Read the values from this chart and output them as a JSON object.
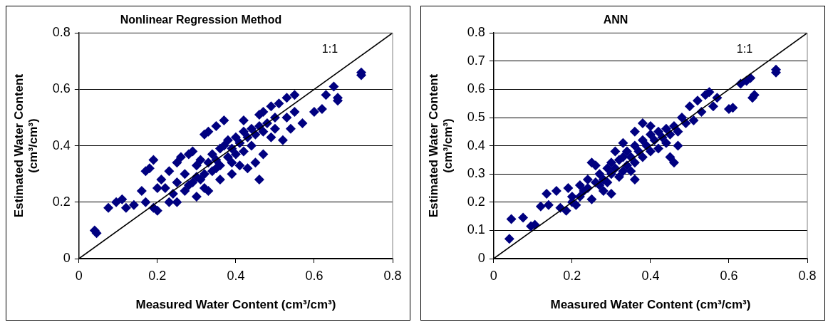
{
  "chart_data": [
    {
      "type": "scatter",
      "title": "Nonlinear Regression Method",
      "xlabel": "Measured Water Content (cm³/cm³)",
      "ylabel": "Estimated Water Content\n(cm³/cm³)",
      "xlim": [
        0,
        0.8
      ],
      "xticks": [
        0,
        0.2,
        0.4,
        0.6,
        0.8
      ],
      "ylim": [
        0,
        0.8
      ],
      "yticks": [
        0,
        0.2,
        0.4,
        0.6,
        0.8
      ],
      "grid": "y",
      "legend": false,
      "annotations": [
        "1:1"
      ],
      "series": [
        {
          "color": "#000080",
          "marker": "diamond",
          "x": [
            0.04,
            0.045,
            0.075,
            0.095,
            0.11,
            0.12,
            0.14,
            0.17,
            0.18,
            0.19,
            0.16,
            0.17,
            0.19,
            0.2,
            0.2,
            0.23,
            0.25,
            0.21,
            0.23,
            0.25,
            0.26,
            0.28,
            0.29,
            0.3,
            0.32,
            0.33,
            0.32,
            0.33,
            0.35,
            0.37,
            0.36,
            0.39,
            0.42,
            0.43,
            0.45,
            0.46,
            0.47,
            0.46,
            0.47,
            0.49,
            0.51,
            0.49,
            0.5,
            0.52,
            0.53,
            0.54,
            0.55,
            0.57,
            0.53,
            0.55,
            0.6,
            0.62,
            0.63,
            0.65,
            0.66,
            0.66,
            0.72,
            0.72,
            0.25,
            0.27,
            0.28,
            0.3,
            0.3,
            0.31,
            0.32,
            0.33,
            0.34,
            0.34,
            0.35,
            0.36,
            0.36,
            0.37,
            0.38,
            0.38,
            0.39,
            0.4,
            0.4,
            0.41,
            0.42,
            0.42,
            0.43,
            0.44,
            0.44,
            0.45,
            0.46,
            0.47,
            0.48,
            0.5,
            0.24,
            0.22,
            0.27,
            0.29,
            0.31,
            0.35,
            0.39,
            0.41
          ],
          "values": [
            0.1,
            0.09,
            0.18,
            0.2,
            0.21,
            0.18,
            0.19,
            0.31,
            0.32,
            0.35,
            0.24,
            0.2,
            0.18,
            0.17,
            0.25,
            0.2,
            0.2,
            0.28,
            0.31,
            0.34,
            0.36,
            0.37,
            0.38,
            0.22,
            0.25,
            0.24,
            0.44,
            0.45,
            0.47,
            0.49,
            0.28,
            0.3,
            0.49,
            0.32,
            0.34,
            0.28,
            0.37,
            0.51,
            0.52,
            0.54,
            0.55,
            0.43,
            0.46,
            0.42,
            0.5,
            0.46,
            0.52,
            0.48,
            0.57,
            0.58,
            0.52,
            0.53,
            0.58,
            0.61,
            0.56,
            0.57,
            0.66,
            0.65,
            0.27,
            0.3,
            0.26,
            0.33,
            0.29,
            0.35,
            0.3,
            0.34,
            0.37,
            0.31,
            0.35,
            0.39,
            0.33,
            0.4,
            0.36,
            0.42,
            0.39,
            0.43,
            0.37,
            0.41,
            0.45,
            0.38,
            0.43,
            0.46,
            0.4,
            0.44,
            0.47,
            0.45,
            0.48,
            0.5,
            0.23,
            0.25,
            0.24,
            0.27,
            0.28,
            0.32,
            0.34,
            0.33
          ]
        },
        {
          "type": "line",
          "color": "#000000",
          "marker": "none",
          "x": [
            0,
            0.8
          ],
          "values": [
            0,
            0.8
          ]
        }
      ]
    },
    {
      "type": "scatter",
      "title": "ANN",
      "xlabel": "Measured Water Content (cm³/cm³)",
      "ylabel": "Estimated Water Content\n(cm³/cm³)",
      "xlim": [
        0,
        0.8
      ],
      "xticks": [
        0,
        0.2,
        0.4,
        0.6,
        0.8
      ],
      "ylim": [
        0,
        0.8
      ],
      "yticks": [
        0,
        0.1,
        0.2,
        0.3,
        0.4,
        0.5,
        0.6,
        0.7,
        0.8
      ],
      "grid": "y",
      "legend": false,
      "annotations": [
        "1:1"
      ],
      "series": [
        {
          "color": "#000080",
          "marker": "diamond",
          "x": [
            0.04,
            0.045,
            0.075,
            0.095,
            0.105,
            0.12,
            0.135,
            0.14,
            0.16,
            0.17,
            0.185,
            0.19,
            0.2,
            0.22,
            0.24,
            0.25,
            0.26,
            0.25,
            0.28,
            0.3,
            0.31,
            0.33,
            0.36,
            0.36,
            0.38,
            0.4,
            0.46,
            0.45,
            0.47,
            0.48,
            0.5,
            0.52,
            0.51,
            0.53,
            0.54,
            0.55,
            0.56,
            0.57,
            0.6,
            0.61,
            0.63,
            0.645,
            0.655,
            0.66,
            0.665,
            0.72,
            0.72,
            0.22,
            0.23,
            0.24,
            0.26,
            0.27,
            0.28,
            0.29,
            0.3,
            0.3,
            0.31,
            0.32,
            0.32,
            0.33,
            0.34,
            0.34,
            0.35,
            0.36,
            0.36,
            0.37,
            0.38,
            0.38,
            0.39,
            0.4,
            0.4,
            0.41,
            0.42,
            0.42,
            0.43,
            0.44,
            0.44,
            0.45,
            0.46,
            0.47,
            0.49,
            0.2,
            0.21,
            0.27,
            0.29,
            0.33,
            0.35
          ],
          "values": [
            0.07,
            0.14,
            0.145,
            0.115,
            0.12,
            0.185,
            0.23,
            0.19,
            0.24,
            0.18,
            0.17,
            0.25,
            0.2,
            0.22,
            0.28,
            0.21,
            0.33,
            0.34,
            0.24,
            0.23,
            0.38,
            0.41,
            0.28,
            0.45,
            0.48,
            0.47,
            0.34,
            0.36,
            0.4,
            0.5,
            0.54,
            0.56,
            0.49,
            0.52,
            0.58,
            0.59,
            0.54,
            0.57,
            0.53,
            0.535,
            0.62,
            0.63,
            0.64,
            0.57,
            0.58,
            0.67,
            0.66,
            0.26,
            0.24,
            0.25,
            0.27,
            0.3,
            0.28,
            0.32,
            0.3,
            0.34,
            0.32,
            0.35,
            0.29,
            0.36,
            0.33,
            0.38,
            0.36,
            0.4,
            0.34,
            0.38,
            0.42,
            0.36,
            0.4,
            0.44,
            0.38,
            0.42,
            0.45,
            0.39,
            0.43,
            0.46,
            0.41,
            0.44,
            0.47,
            0.45,
            0.48,
            0.22,
            0.19,
            0.26,
            0.27,
            0.31,
            0.31
          ]
        },
        {
          "type": "line",
          "color": "#000000",
          "marker": "none",
          "x": [
            0,
            0.8
          ],
          "values": [
            0,
            0.8
          ]
        }
      ]
    }
  ]
}
